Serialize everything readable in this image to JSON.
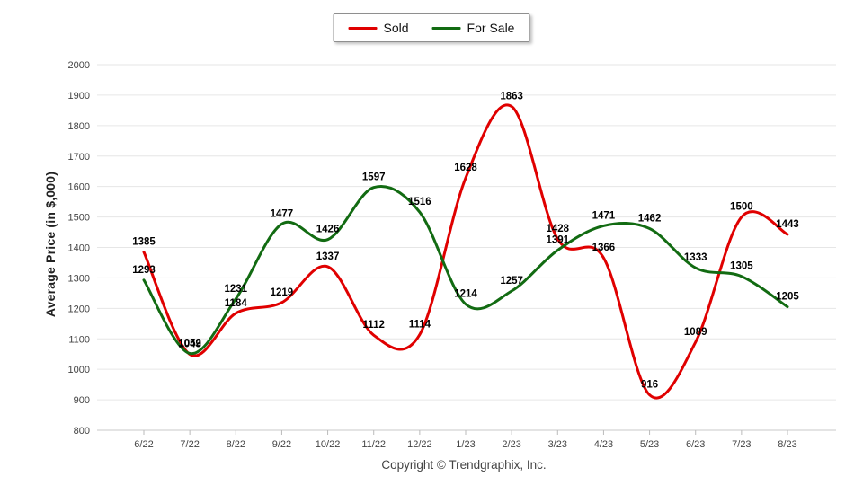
{
  "legend": {
    "items": [
      {
        "label": "Sold",
        "color": "#e00000"
      },
      {
        "label": "For Sale",
        "color": "#126b12"
      }
    ]
  },
  "footer": {
    "copyright": "Copyright © Trendgraphix, Inc."
  },
  "chart_data": {
    "type": "line",
    "title": "",
    "xlabel": "",
    "ylabel": "Average Price (in $,000)",
    "categories": [
      "6/22",
      "7/22",
      "8/22",
      "9/22",
      "10/22",
      "11/22",
      "12/22",
      "1/23",
      "2/23",
      "3/23",
      "4/23",
      "5/23",
      "6/23",
      "7/23",
      "8/23"
    ],
    "series": [
      {
        "name": "Sold",
        "color": "#e00000",
        "values": [
          1385,
          1049,
          1184,
          1219,
          1337,
          1112,
          1114,
          1628,
          1863,
          1428,
          1366,
          916,
          1089,
          1500,
          1443
        ]
      },
      {
        "name": "For Sale",
        "color": "#126b12",
        "values": [
          1293,
          1052,
          1231,
          1477,
          1426,
          1597,
          1516,
          1214,
          1257,
          1391,
          1471,
          1462,
          1333,
          1305,
          1205
        ]
      }
    ],
    "ylim": [
      800,
      2000
    ],
    "ytick_step": 100,
    "grid": "horizontal",
    "gridline_color": "#e6e6e6",
    "axis_line_color": "#c9c9c9",
    "tick_label_color": "#444444",
    "value_label_color": "#000000",
    "legend_position": "top-center",
    "value_labels": true
  }
}
